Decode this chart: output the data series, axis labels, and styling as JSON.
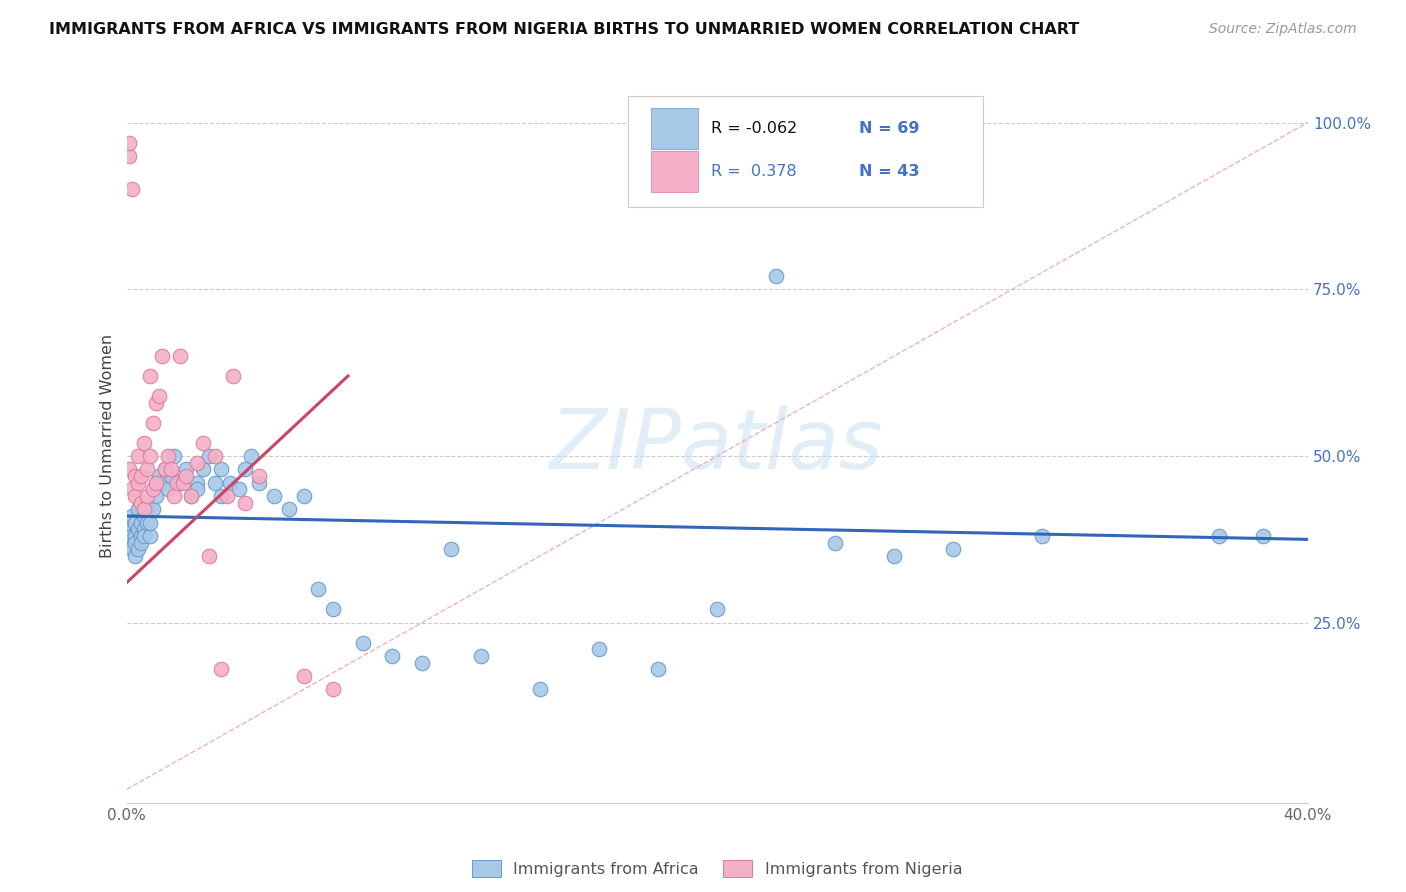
{
  "title": "IMMIGRANTS FROM AFRICA VS IMMIGRANTS FROM NIGERIA BIRTHS TO UNMARRIED WOMEN CORRELATION CHART",
  "source": "Source: ZipAtlas.com",
  "ylabel": "Births to Unmarried Women",
  "xlim": [
    0.0,
    0.4
  ],
  "ylim": [
    -0.02,
    1.05
  ],
  "watermark": "ZIPatlas",
  "legend_r1": "R = -0.062",
  "legend_n1": "N = 69",
  "legend_r2": "R =  0.378",
  "legend_n2": "N = 43",
  "africa_face": "#a8c8e8",
  "africa_edge": "#6699cc",
  "nigeria_face": "#f4b0c8",
  "nigeria_edge": "#e07898",
  "africa_line": "#3366bb",
  "nigeria_line": "#cc4466",
  "diag_color": "#f0a8b8",
  "grid_color": "#cccccc",
  "raxis_color": "#4472c4",
  "title_color": "#111111",
  "source_color": "#999999",
  "tick_color": "#666666",
  "legend_text_color": "#4472c4",
  "yticks": [
    0.25,
    0.5,
    0.75,
    1.0
  ],
  "ytick_labels": [
    "25.0%",
    "50.0%",
    "75.0%",
    "100.0%"
  ],
  "xtick_labels": [
    "0.0%",
    "",
    "",
    "",
    "40.0%"
  ],
  "africa_x": [
    0.001,
    0.001,
    0.001,
    0.002,
    0.002,
    0.002,
    0.002,
    0.003,
    0.003,
    0.003,
    0.003,
    0.004,
    0.004,
    0.004,
    0.005,
    0.005,
    0.005,
    0.006,
    0.006,
    0.006,
    0.007,
    0.007,
    0.008,
    0.008,
    0.009,
    0.01,
    0.01,
    0.011,
    0.012,
    0.013,
    0.014,
    0.015,
    0.016,
    0.018,
    0.02,
    0.022,
    0.024,
    0.024,
    0.026,
    0.028,
    0.03,
    0.032,
    0.032,
    0.035,
    0.038,
    0.04,
    0.042,
    0.045,
    0.05,
    0.055,
    0.06,
    0.065,
    0.07,
    0.08,
    0.09,
    0.1,
    0.11,
    0.12,
    0.14,
    0.16,
    0.18,
    0.2,
    0.22,
    0.24,
    0.26,
    0.28,
    0.31,
    0.37,
    0.385
  ],
  "africa_y": [
    0.38,
    0.4,
    0.37,
    0.36,
    0.39,
    0.41,
    0.38,
    0.38,
    0.4,
    0.35,
    0.37,
    0.36,
    0.39,
    0.42,
    0.38,
    0.4,
    0.37,
    0.39,
    0.41,
    0.38,
    0.4,
    0.42,
    0.38,
    0.4,
    0.42,
    0.46,
    0.44,
    0.47,
    0.46,
    0.48,
    0.45,
    0.47,
    0.5,
    0.46,
    0.48,
    0.44,
    0.46,
    0.45,
    0.48,
    0.5,
    0.46,
    0.44,
    0.48,
    0.46,
    0.45,
    0.48,
    0.5,
    0.46,
    0.44,
    0.42,
    0.44,
    0.3,
    0.27,
    0.22,
    0.2,
    0.19,
    0.36,
    0.2,
    0.15,
    0.21,
    0.18,
    0.27,
    0.77,
    0.37,
    0.35,
    0.36,
    0.38,
    0.38,
    0.38
  ],
  "nigeria_x": [
    0.001,
    0.001,
    0.001,
    0.002,
    0.002,
    0.003,
    0.003,
    0.004,
    0.004,
    0.005,
    0.005,
    0.006,
    0.006,
    0.007,
    0.007,
    0.008,
    0.008,
    0.009,
    0.009,
    0.01,
    0.01,
    0.011,
    0.012,
    0.013,
    0.014,
    0.015,
    0.016,
    0.017,
    0.018,
    0.019,
    0.02,
    0.022,
    0.024,
    0.026,
    0.028,
    0.03,
    0.032,
    0.034,
    0.036,
    0.04,
    0.045,
    0.06,
    0.07
  ],
  "nigeria_y": [
    0.95,
    0.97,
    0.48,
    0.9,
    0.45,
    0.44,
    0.47,
    0.5,
    0.46,
    0.43,
    0.47,
    0.52,
    0.42,
    0.48,
    0.44,
    0.62,
    0.5,
    0.45,
    0.55,
    0.58,
    0.46,
    0.59,
    0.65,
    0.48,
    0.5,
    0.48,
    0.44,
    0.46,
    0.65,
    0.46,
    0.47,
    0.44,
    0.49,
    0.52,
    0.35,
    0.5,
    0.18,
    0.44,
    0.62,
    0.43,
    0.47,
    0.17,
    0.15
  ]
}
